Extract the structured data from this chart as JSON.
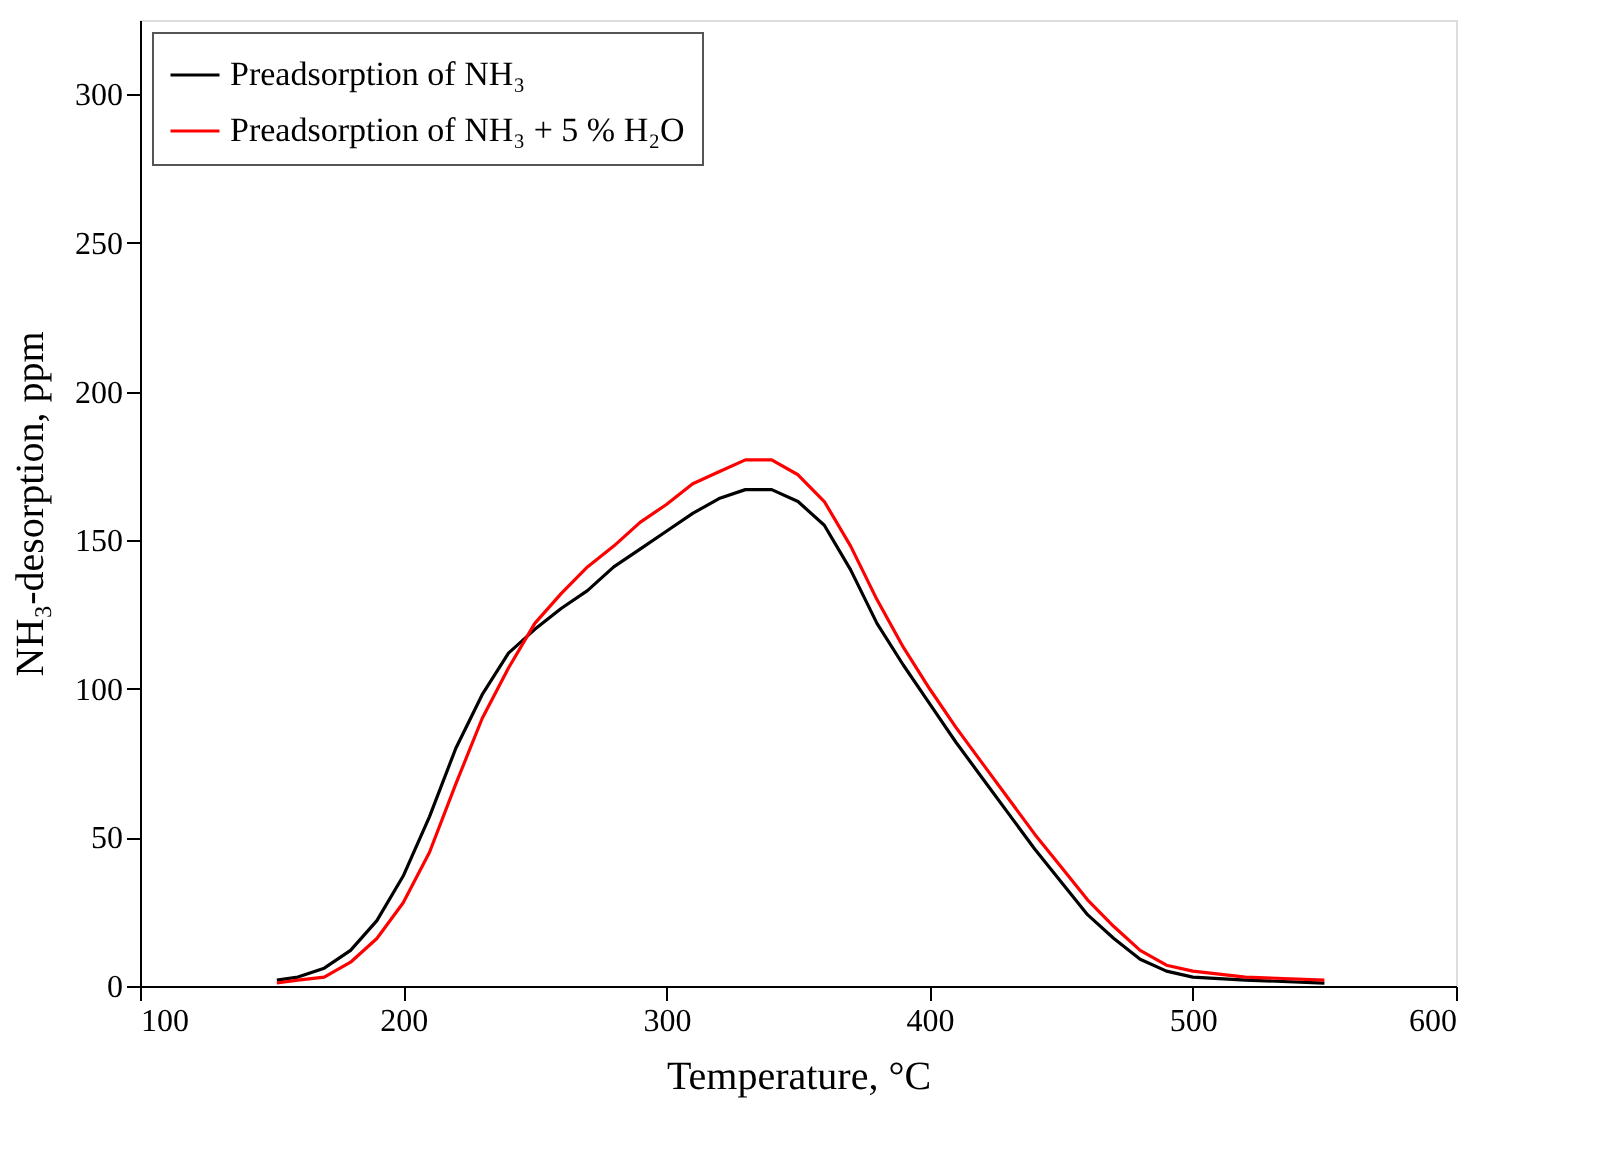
{
  "chart_data": {
    "type": "line",
    "xlabel": "Temperature, °C",
    "ylabel": "NH₃-desorption, ppm",
    "xlim": [
      100,
      600
    ],
    "xticks": [
      100,
      200,
      300,
      400,
      500,
      600
    ],
    "ylim": [
      0,
      325
    ],
    "yticks": [
      0,
      50,
      100,
      150,
      200,
      250,
      300
    ],
    "grid": false,
    "legend": "top left",
    "line_style": "solid",
    "marker": "none",
    "x": [
      152,
      160,
      170,
      180,
      190,
      200,
      210,
      220,
      230,
      240,
      250,
      260,
      270,
      280,
      290,
      300,
      310,
      320,
      330,
      340,
      350,
      360,
      370,
      380,
      390,
      400,
      410,
      420,
      430,
      440,
      450,
      460,
      470,
      480,
      490,
      500,
      520,
      550
    ],
    "series": [
      {
        "name": "Preadsorption of NH₃",
        "color": "#000000",
        "values": [
          2,
          3,
          6,
          12,
          22,
          37,
          57,
          80,
          98,
          112,
          120,
          127,
          133,
          141,
          147,
          153,
          159,
          164,
          167,
          167,
          163,
          155,
          140,
          122,
          108,
          95,
          82,
          70,
          58,
          46,
          35,
          24,
          16,
          9,
          5,
          3,
          2,
          1
        ]
      },
      {
        "name": "Preadsorption of NH₃ + 5 % H₂O",
        "color": "#ff0000",
        "values": [
          1,
          2,
          3,
          8,
          16,
          28,
          45,
          68,
          90,
          107,
          122,
          132,
          141,
          148,
          156,
          162,
          169,
          173,
          177,
          177,
          172,
          163,
          148,
          130,
          114,
          100,
          87,
          75,
          63,
          51,
          40,
          29,
          20,
          12,
          7,
          5,
          3,
          2
        ]
      }
    ]
  }
}
